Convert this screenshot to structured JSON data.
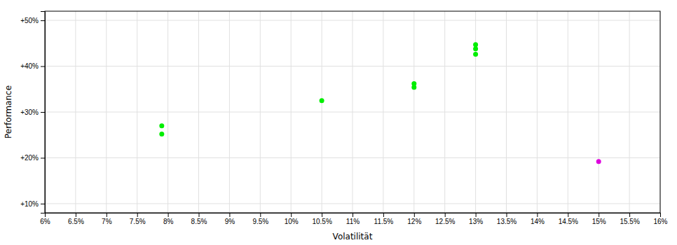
{
  "chart_data": {
    "type": "scatter",
    "xlabel": "Volatilität",
    "ylabel": "Performance",
    "xlim": [
      0.06,
      0.16
    ],
    "ylim": [
      0.08,
      0.52
    ],
    "xticks": [
      {
        "value": 0.06,
        "label": "6%"
      },
      {
        "value": 0.065,
        "label": "6.5%"
      },
      {
        "value": 0.07,
        "label": "7%"
      },
      {
        "value": 0.075,
        "label": "7.5%"
      },
      {
        "value": 0.08,
        "label": "8%"
      },
      {
        "value": 0.085,
        "label": "8.5%"
      },
      {
        "value": 0.09,
        "label": "9%"
      },
      {
        "value": 0.095,
        "label": "9.5%"
      },
      {
        "value": 0.1,
        "label": "10%"
      },
      {
        "value": 0.105,
        "label": "10.5%"
      },
      {
        "value": 0.11,
        "label": "11%"
      },
      {
        "value": 0.115,
        "label": "11.5%"
      },
      {
        "value": 0.12,
        "label": "12%"
      },
      {
        "value": 0.125,
        "label": "12.5%"
      },
      {
        "value": 0.13,
        "label": "13%"
      },
      {
        "value": 0.135,
        "label": "13.5%"
      },
      {
        "value": 0.14,
        "label": "14%"
      },
      {
        "value": 0.145,
        "label": "14.5%"
      },
      {
        "value": 0.15,
        "label": "15%"
      },
      {
        "value": 0.155,
        "label": "15.5%"
      },
      {
        "value": 0.16,
        "label": "16%"
      }
    ],
    "yticks": [
      {
        "value": 0.1,
        "label": "+10%"
      },
      {
        "value": 0.2,
        "label": "+20%"
      },
      {
        "value": 0.3,
        "label": "+30%"
      },
      {
        "value": 0.4,
        "label": "+40%"
      },
      {
        "value": 0.5,
        "label": "+50%"
      }
    ],
    "grid": true,
    "series": [
      {
        "color": "#00ee00",
        "x": [
          0.079,
          0.079,
          0.105,
          0.12,
          0.12,
          0.13,
          0.13,
          0.13
        ],
        "values": [
          0.27,
          0.252,
          0.325,
          0.362,
          0.354,
          0.447,
          0.438,
          0.426
        ]
      },
      {
        "color": "#dd00dd",
        "x": [
          0.15
        ],
        "values": [
          0.192
        ]
      }
    ]
  }
}
